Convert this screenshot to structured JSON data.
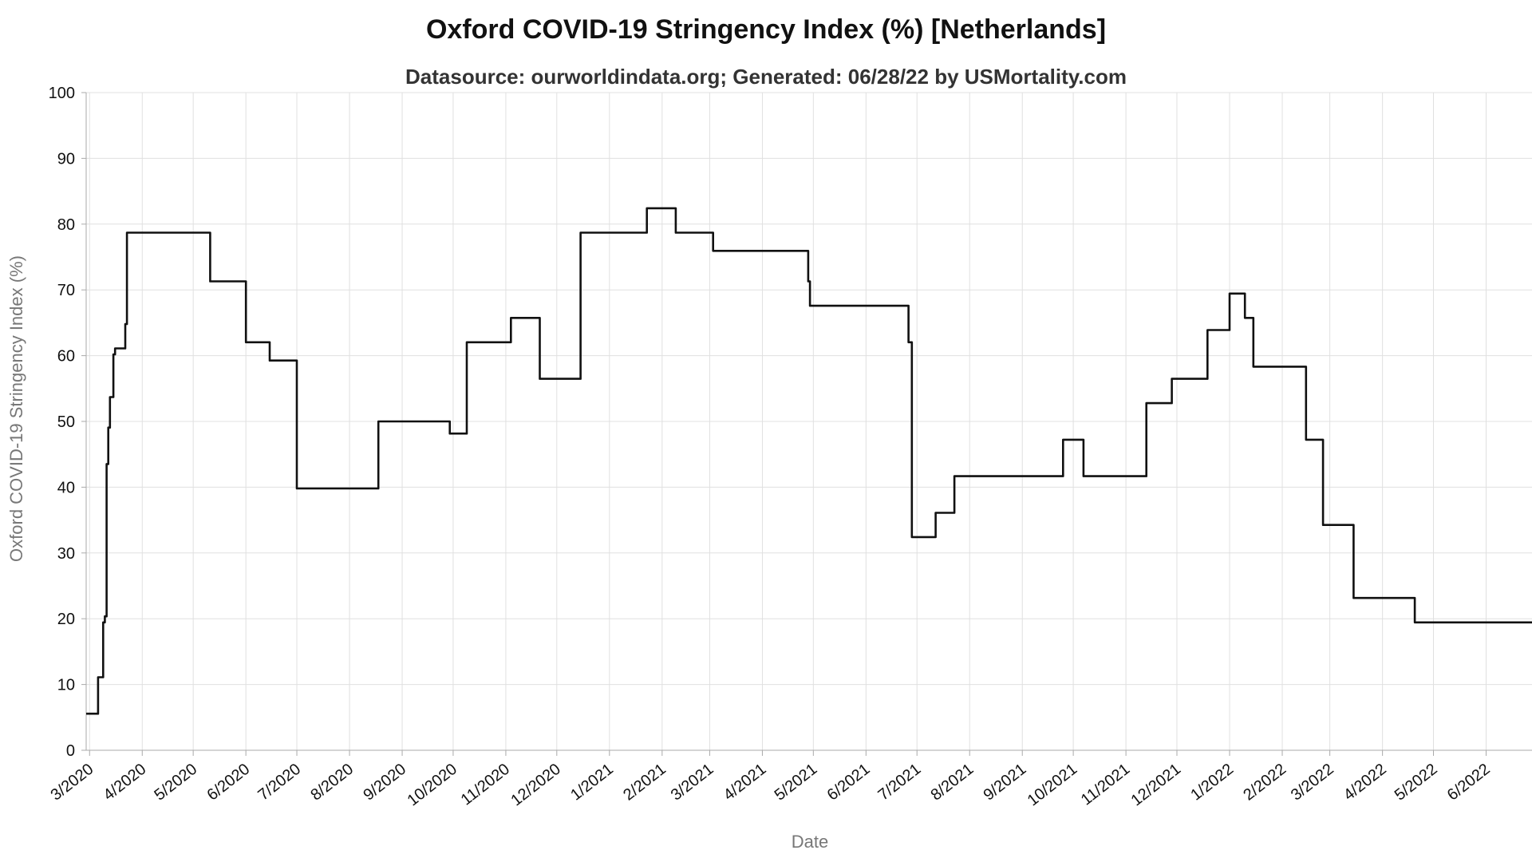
{
  "chart_data": {
    "type": "line",
    "title": "Oxford COVID-19 Stringency Index (%) [Netherlands]",
    "subtitle": "Datasource: ourworldindata.org; Generated: 06/28/22 by USMortality.com",
    "xlabel": "Date",
    "ylabel": "Oxford COVID-19 Stringency Index (%)",
    "ylim": [
      0,
      100
    ],
    "xlim": [
      "2020-02-28",
      "2022-06-28"
    ],
    "grid": true,
    "y_ticks": [
      0,
      10,
      20,
      30,
      40,
      50,
      60,
      70,
      80,
      90,
      100
    ],
    "x_ticks": [
      {
        "date": "2020-03-01",
        "label": "3/2020"
      },
      {
        "date": "2020-04-01",
        "label": "4/2020"
      },
      {
        "date": "2020-05-01",
        "label": "5/2020"
      },
      {
        "date": "2020-06-01",
        "label": "6/2020"
      },
      {
        "date": "2020-07-01",
        "label": "7/2020"
      },
      {
        "date": "2020-08-01",
        "label": "8/2020"
      },
      {
        "date": "2020-09-01",
        "label": "9/2020"
      },
      {
        "date": "2020-10-01",
        "label": "10/2020"
      },
      {
        "date": "2020-11-01",
        "label": "11/2020"
      },
      {
        "date": "2020-12-01",
        "label": "12/2020"
      },
      {
        "date": "2021-01-01",
        "label": "1/2021"
      },
      {
        "date": "2021-02-01",
        "label": "2/2021"
      },
      {
        "date": "2021-03-01",
        "label": "3/2021"
      },
      {
        "date": "2021-04-01",
        "label": "4/2021"
      },
      {
        "date": "2021-05-01",
        "label": "5/2021"
      },
      {
        "date": "2021-06-01",
        "label": "6/2021"
      },
      {
        "date": "2021-07-01",
        "label": "7/2021"
      },
      {
        "date": "2021-08-01",
        "label": "8/2021"
      },
      {
        "date": "2021-09-01",
        "label": "9/2021"
      },
      {
        "date": "2021-10-01",
        "label": "10/2021"
      },
      {
        "date": "2021-11-01",
        "label": "11/2021"
      },
      {
        "date": "2021-12-01",
        "label": "12/2021"
      },
      {
        "date": "2022-01-01",
        "label": "1/2022"
      },
      {
        "date": "2022-02-01",
        "label": "2/2022"
      },
      {
        "date": "2022-03-01",
        "label": "3/2022"
      },
      {
        "date": "2022-04-01",
        "label": "4/2022"
      },
      {
        "date": "2022-05-01",
        "label": "5/2022"
      },
      {
        "date": "2022-06-01",
        "label": "6/2022"
      }
    ],
    "series": [
      {
        "color": "#111111",
        "step": true,
        "points": [
          [
            "2020-02-28",
            5.56
          ],
          [
            "2020-03-06",
            11.11
          ],
          [
            "2020-03-09",
            19.44
          ],
          [
            "2020-03-10",
            20.37
          ],
          [
            "2020-03-11",
            43.52
          ],
          [
            "2020-03-12",
            49.07
          ],
          [
            "2020-03-13",
            53.7
          ],
          [
            "2020-03-15",
            60.19
          ],
          [
            "2020-03-16",
            61.11
          ],
          [
            "2020-03-22",
            64.81
          ],
          [
            "2020-03-23",
            78.7
          ],
          [
            "2020-05-11",
            71.3
          ],
          [
            "2020-06-01",
            62.04
          ],
          [
            "2020-06-15",
            59.26
          ],
          [
            "2020-07-01",
            39.81
          ],
          [
            "2020-08-18",
            50.0
          ],
          [
            "2020-09-29",
            48.15
          ],
          [
            "2020-10-09",
            62.04
          ],
          [
            "2020-11-04",
            65.74
          ],
          [
            "2020-11-21",
            56.48
          ],
          [
            "2020-12-15",
            78.7
          ],
          [
            "2021-01-23",
            82.41
          ],
          [
            "2021-02-09",
            78.7
          ],
          [
            "2021-03-03",
            75.93
          ],
          [
            "2021-04-28",
            71.3
          ],
          [
            "2021-04-29",
            67.59
          ],
          [
            "2021-06-26",
            62.04
          ],
          [
            "2021-06-28",
            32.41
          ],
          [
            "2021-07-12",
            36.11
          ],
          [
            "2021-07-23",
            41.67
          ],
          [
            "2021-09-25",
            47.22
          ],
          [
            "2021-10-07",
            41.67
          ],
          [
            "2021-11-13",
            52.78
          ],
          [
            "2021-11-28",
            56.48
          ],
          [
            "2021-12-19",
            63.89
          ],
          [
            "2022-01-01",
            69.44
          ],
          [
            "2022-01-10",
            65.74
          ],
          [
            "2022-01-15",
            58.33
          ],
          [
            "2022-02-15",
            47.22
          ],
          [
            "2022-02-25",
            34.26
          ],
          [
            "2022-03-15",
            23.15
          ],
          [
            "2022-04-20",
            19.44
          ],
          [
            "2022-06-28",
            19.44
          ]
        ]
      }
    ]
  }
}
